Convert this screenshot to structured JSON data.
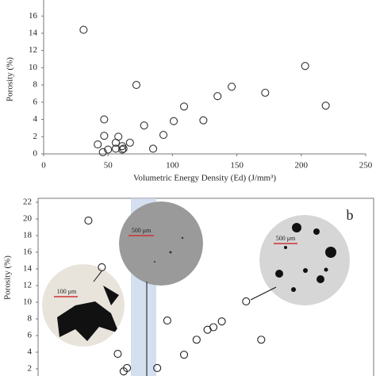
{
  "chart_data": [
    {
      "type": "scatter",
      "x_label": "Volumetric Energy Density (Ed) (J/mm³)",
      "y_label": "Porosity (%)",
      "color": "#333333",
      "x": [
        31,
        203,
        72,
        146,
        172,
        135,
        219,
        109,
        78,
        124,
        101,
        47,
        93,
        47,
        58,
        42,
        67,
        56,
        85,
        56,
        61,
        61,
        62,
        50,
        46
      ],
      "values": [
        14.4,
        10.2,
        8.0,
        7.8,
        7.1,
        6.7,
        5.6,
        5.5,
        3.3,
        3.9,
        3.8,
        4.0,
        2.2,
        2.1,
        2.0,
        1.1,
        1.3,
        1.3,
        0.6,
        0.6,
        0.9,
        0.5,
        0.6,
        0.5,
        0.2
      ],
      "xlim": [
        0,
        250
      ],
      "ylim": [
        0,
        18
      ],
      "xticks": [
        0,
        50,
        100,
        150,
        200,
        250
      ],
      "yticks": [
        0,
        2,
        4,
        6,
        8,
        10,
        12,
        14,
        16
      ]
    },
    {
      "type": "scatter",
      "y_label": "Porosity (%)",
      "annotation": "b",
      "color": "#222222",
      "x": [
        15,
        31,
        109,
        50,
        61,
        57,
        97,
        129,
        144,
        157,
        164,
        174,
        203,
        221
      ],
      "values": [
        19.8,
        14.2,
        7.8,
        3.8,
        2.1,
        1.7,
        2.1,
        3.7,
        5.5,
        6.7,
        7.0,
        7.7,
        10.1,
        5.5
      ],
      "xlim": [
        -45,
        355
      ],
      "ylim": [
        0,
        22
      ],
      "yticks": [
        2,
        4,
        6,
        8,
        10,
        12,
        14,
        16,
        18,
        20,
        22
      ],
      "insets": [
        {
          "label": "500 μm"
        },
        {
          "label": "500 μm"
        },
        {
          "label": "100 μm"
        }
      ]
    }
  ]
}
